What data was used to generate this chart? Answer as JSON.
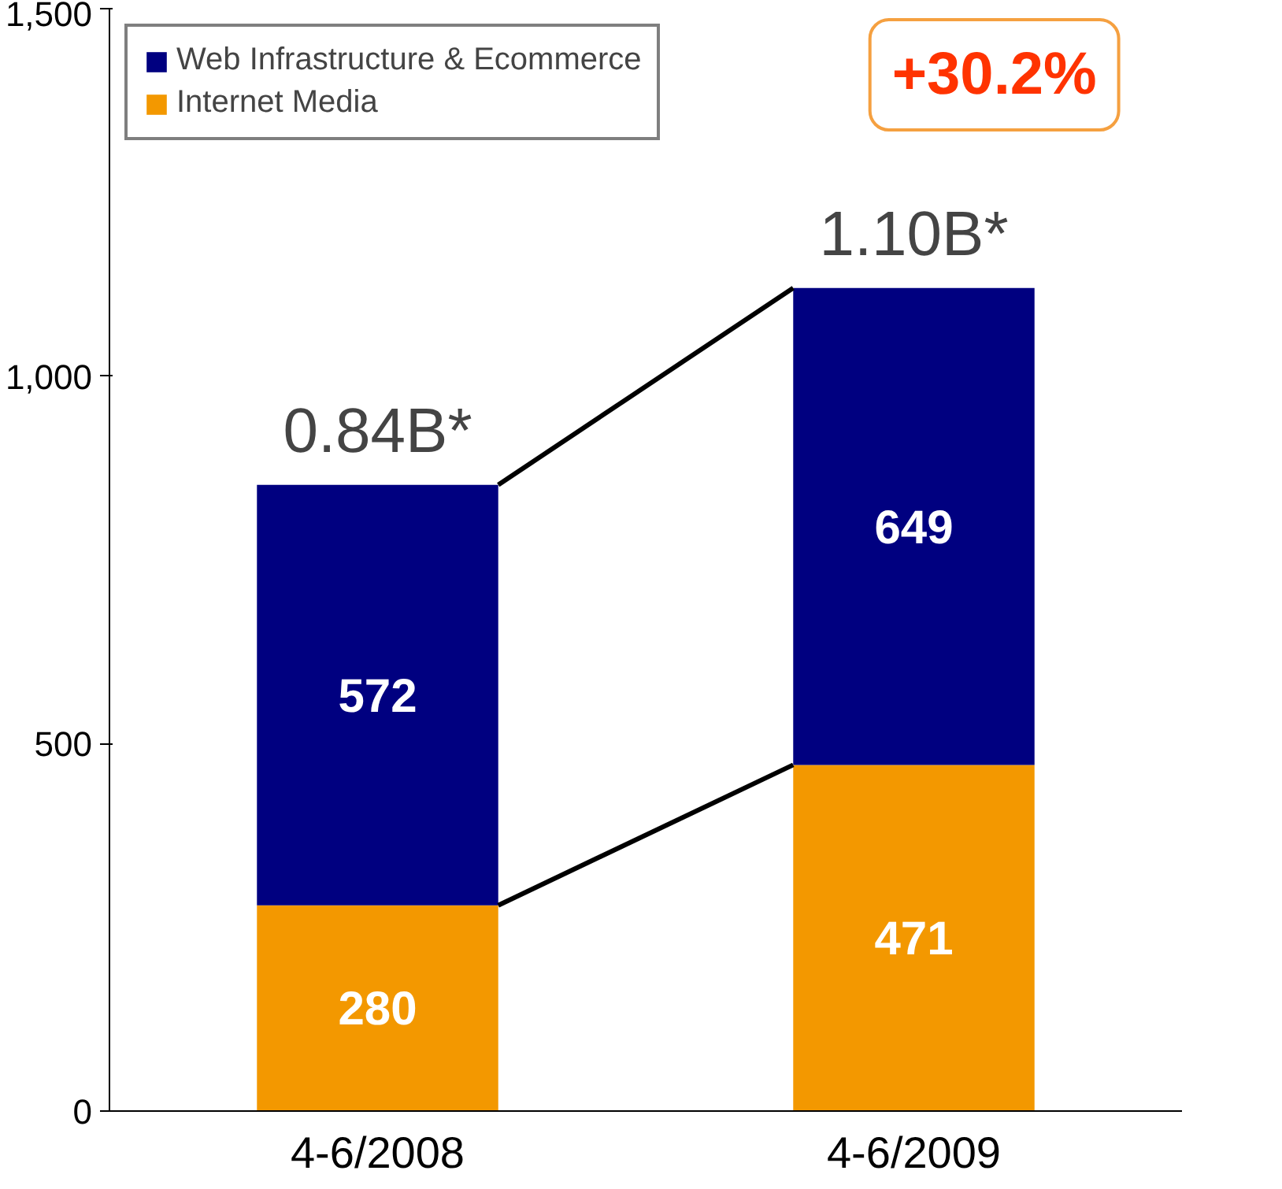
{
  "chart_data": {
    "type": "bar",
    "stacked": true,
    "categories": [
      "4-6/2008",
      "4-6/2009"
    ],
    "series": [
      {
        "name": "Internet Media",
        "color": "#f39800",
        "values": [
          280,
          471
        ]
      },
      {
        "name": "Web Infrastructure & Ecommerce",
        "color": "#000080",
        "values": [
          572,
          649
        ]
      }
    ],
    "ylim": [
      0,
      1500
    ],
    "yticks": [
      0,
      {
        "value": 500,
        "label": "500"
      },
      {
        "value": 1000,
        "label": "1,000"
      },
      {
        "value": 1500,
        "label": "1,500"
      }
    ],
    "data_labels": true,
    "annotations": [
      {
        "text": "0.84B*",
        "x": "4-6/2008",
        "y": 852
      },
      {
        "text": "1.10B*",
        "x": "4-6/2009",
        "y": 1120
      },
      "+30.2%"
    ],
    "legend": "top left",
    "grid": false
  }
}
